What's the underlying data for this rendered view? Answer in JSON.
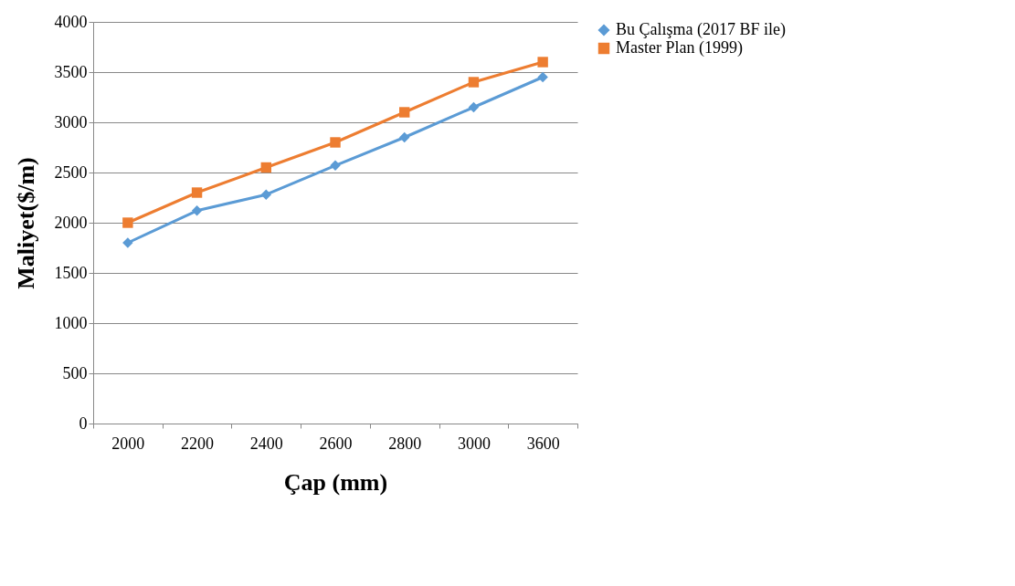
{
  "chart_data": {
    "type": "line",
    "xlabel": "Çap (mm)",
    "ylabel": "Maliyet($/m)",
    "categories": [
      "2000",
      "2200",
      "2400",
      "2600",
      "2800",
      "3000",
      "3600"
    ],
    "ylim": [
      0,
      4000
    ],
    "yticks": [
      0,
      500,
      1000,
      1500,
      2000,
      2500,
      3000,
      3500,
      4000
    ],
    "grid": "y",
    "legend": "right",
    "series": [
      {
        "name": "Bu Çalışma (2017 BF ile)",
        "color": "#5b9bd5",
        "marker": "diamond",
        "values": [
          1800,
          2120,
          2280,
          2570,
          2850,
          3150,
          3450
        ]
      },
      {
        "name": "Master Plan (1999)",
        "color": "#ed7d31",
        "marker": "square",
        "values": [
          2000,
          2300,
          2550,
          2800,
          3100,
          3400,
          3600
        ]
      }
    ]
  }
}
